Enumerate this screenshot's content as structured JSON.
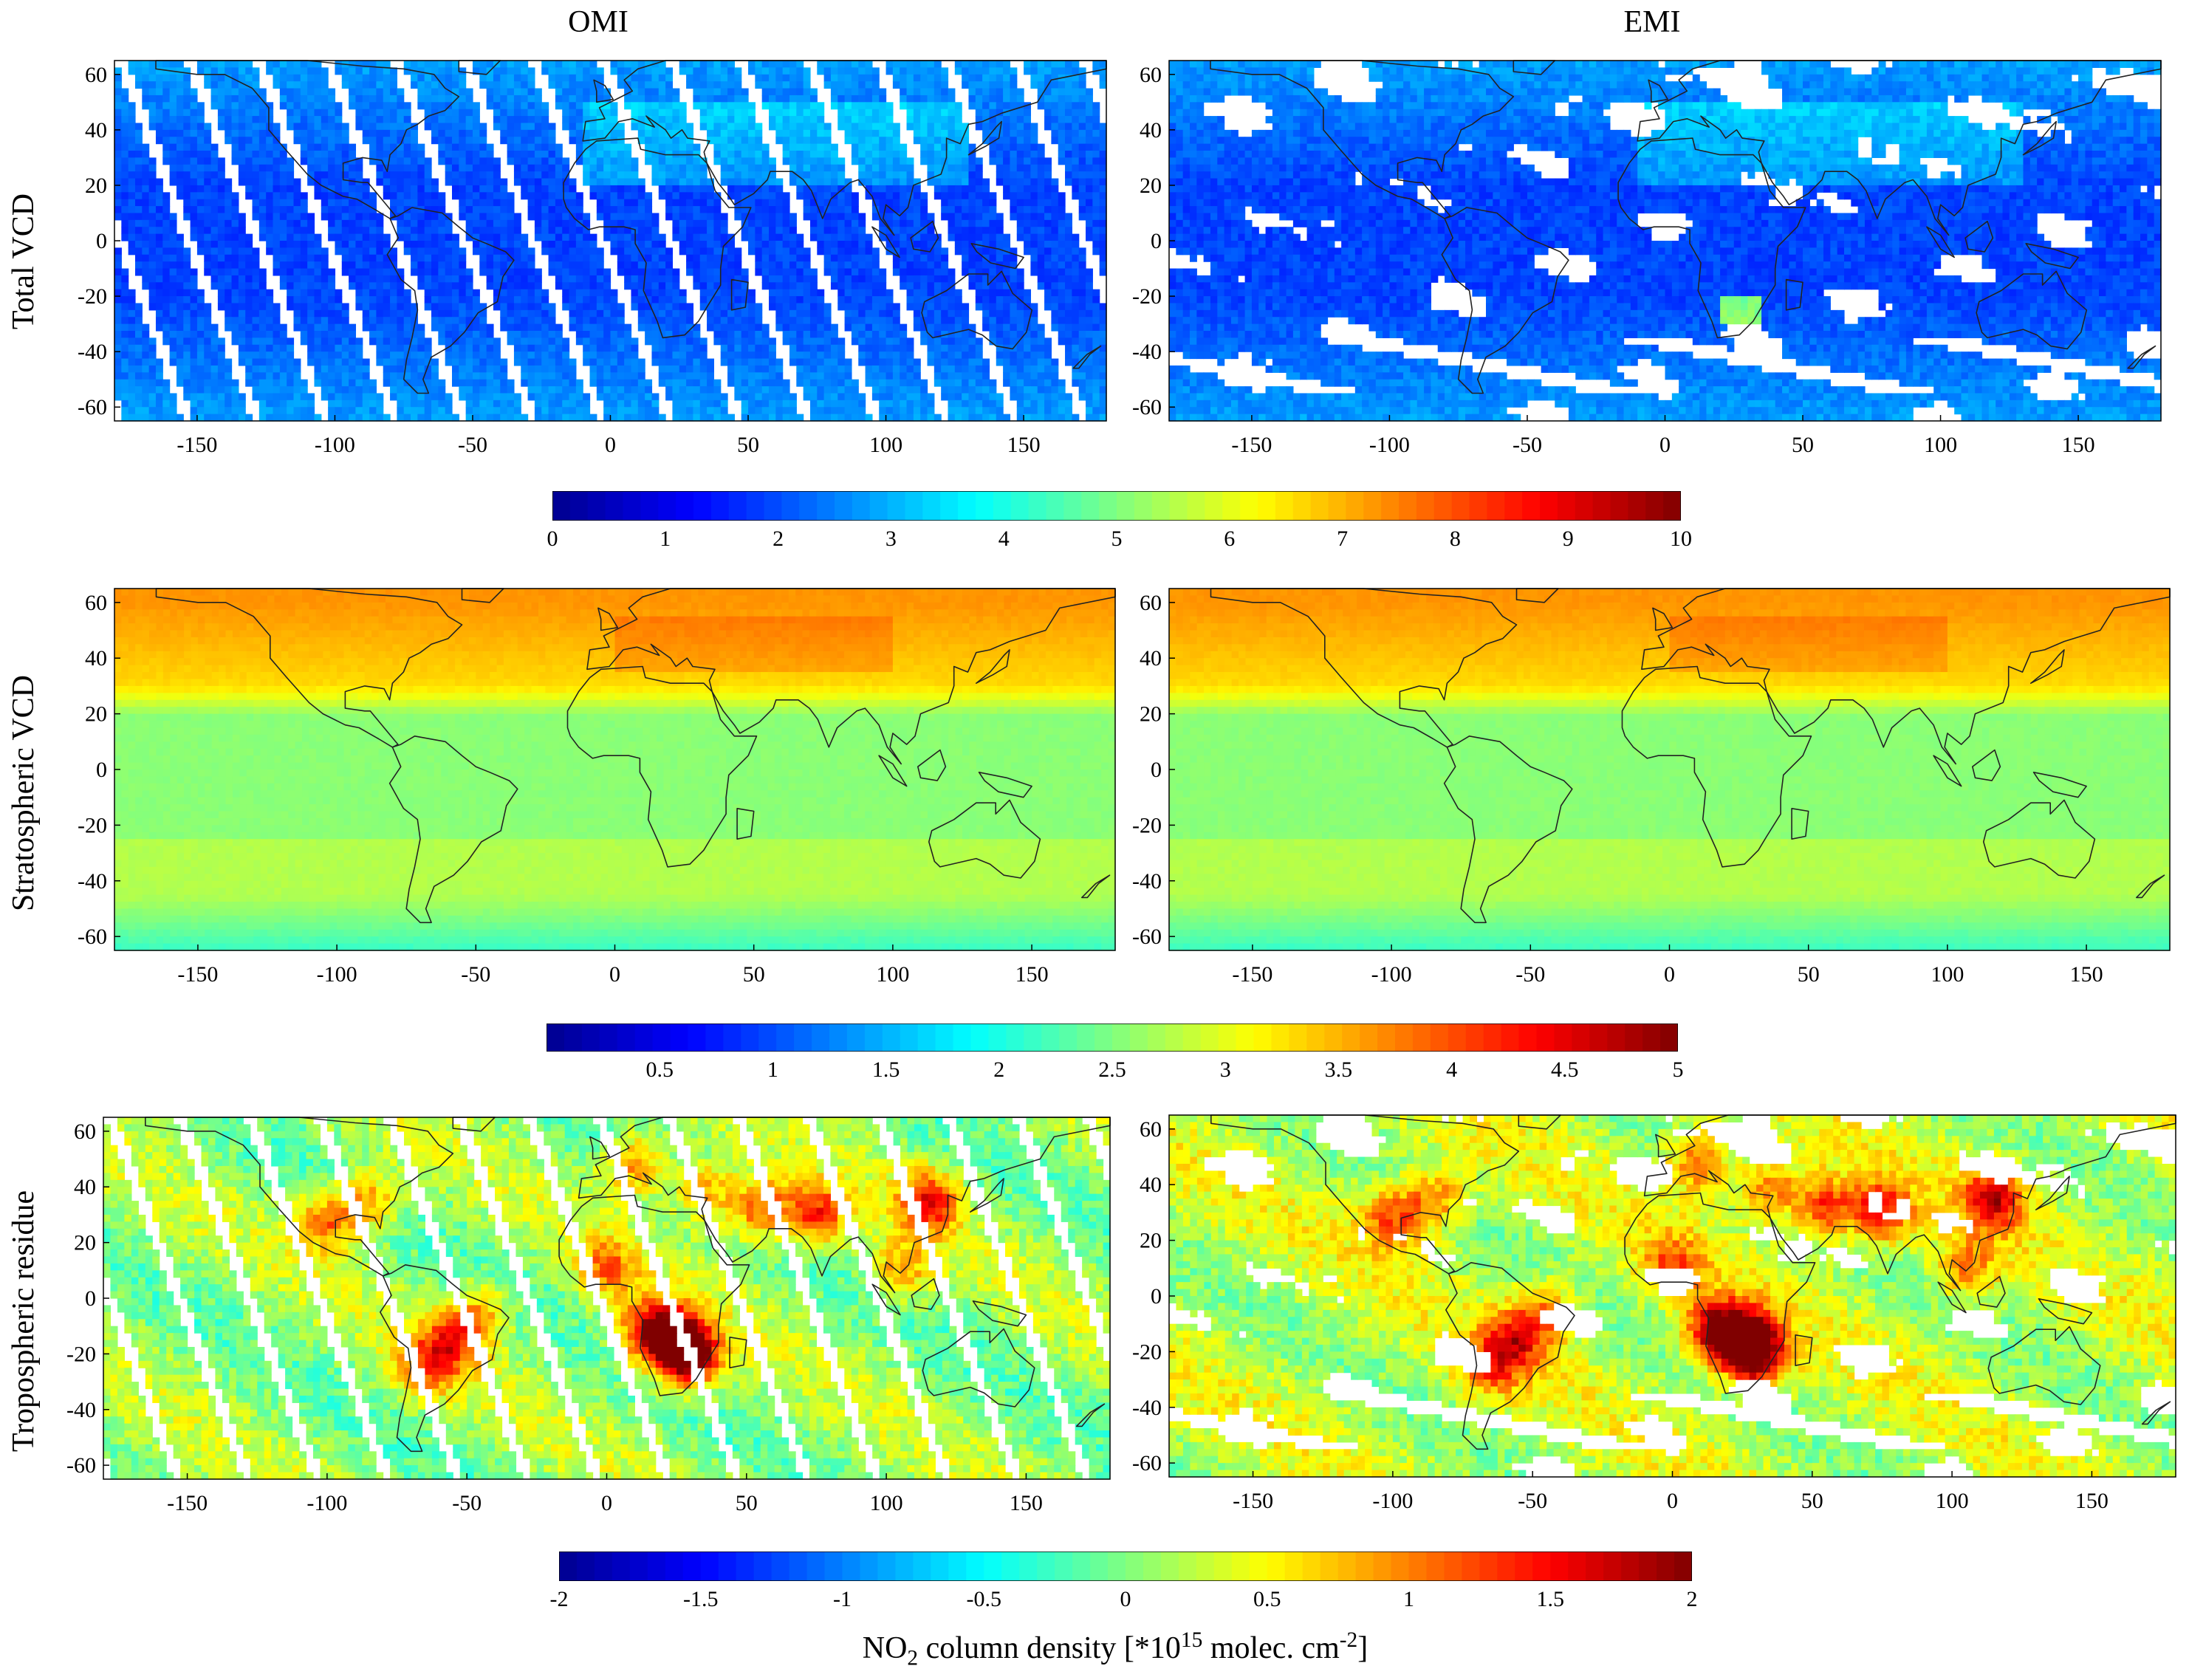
{
  "columns": [
    "OMI",
    "EMI"
  ],
  "rows": [
    "Total VCD",
    "Stratospheric VCD",
    "Tropospheric residue"
  ],
  "colorbars": [
    {
      "ticks": [
        "0",
        "1",
        "2",
        "3",
        "4",
        "5",
        "6",
        "7",
        "8",
        "9",
        "10"
      ],
      "vmin": 0,
      "vmax": 10
    },
    {
      "ticks": [
        "0.5",
        "1",
        "1.5",
        "2",
        "2.5",
        "3",
        "3.5",
        "4",
        "4.5",
        "5"
      ],
      "vmin": 0,
      "vmax": 5
    },
    {
      "ticks": [
        "-2",
        "-1.5",
        "-1",
        "-0.5",
        "0",
        "0.5",
        "1",
        "1.5",
        "2"
      ],
      "vmin": -2,
      "vmax": 2
    }
  ],
  "footer": {
    "prefix": "NO",
    "sub": "2",
    "middle": " column density [*10",
    "sup1": "15",
    "middle2": " molec. cm",
    "sup2": "-2",
    "suffix": "]"
  },
  "colors": {
    "jet": [
      "#00008f",
      "#0000ff",
      "#0080ff",
      "#00ffff",
      "#80ff80",
      "#ffff00",
      "#ff8000",
      "#ff0000",
      "#800000"
    ],
    "coast": "#222222"
  },
  "chart_data": [
    {
      "type": "heatmap",
      "title": "OMI Total VCD",
      "xlabel": "",
      "ylabel": "Total VCD",
      "x_ticks": [
        "-150",
        "-100",
        "-50",
        "0",
        "50",
        "100",
        "150"
      ],
      "y_ticks": [
        "60",
        "40",
        "20",
        "0",
        "-20",
        "-40",
        "-60"
      ],
      "xlim": [
        -180,
        180
      ],
      "ylim": [
        -65,
        65
      ],
      "value_range": [
        0,
        10
      ],
      "typical_value": 2.2,
      "pattern": "orbit-swath-gaps"
    },
    {
      "type": "heatmap",
      "title": "EMI Total VCD",
      "xlabel": "",
      "ylabel": "",
      "x_ticks": [
        "-150",
        "-100",
        "-50",
        "0",
        "50",
        "100",
        "150"
      ],
      "y_ticks": [
        "60",
        "40",
        "20",
        "0",
        "-20",
        "-40",
        "-60"
      ],
      "xlim": [
        -180,
        180
      ],
      "ylim": [
        -65,
        65
      ],
      "value_range": [
        0,
        10
      ],
      "typical_value": 2.3,
      "pattern": "cloud-gaps"
    },
    {
      "type": "heatmap",
      "title": "OMI Stratospheric VCD",
      "xlabel": "",
      "ylabel": "Stratospheric VCD",
      "x_ticks": [
        "-150",
        "-100",
        "-50",
        "0",
        "50",
        "100",
        "150"
      ],
      "y_ticks": [
        "60",
        "40",
        "20",
        "0",
        "-20",
        "-40",
        "-60"
      ],
      "xlim": [
        -180,
        180
      ],
      "ylim": [
        -65,
        65
      ],
      "value_range": [
        0,
        5
      ],
      "typical_value": 2.6,
      "pattern": "latitudinal"
    },
    {
      "type": "heatmap",
      "title": "EMI Stratospheric VCD",
      "xlabel": "",
      "ylabel": "",
      "x_ticks": [
        "-150",
        "-100",
        "-50",
        "0",
        "50",
        "100",
        "150"
      ],
      "y_ticks": [
        "60",
        "40",
        "20",
        "0",
        "-20",
        "-40",
        "-60"
      ],
      "xlim": [
        -180,
        180
      ],
      "ylim": [
        -65,
        65
      ],
      "value_range": [
        0,
        5
      ],
      "typical_value": 2.6,
      "pattern": "latitudinal"
    },
    {
      "type": "heatmap",
      "title": "OMI Tropospheric residue",
      "xlabel": "",
      "ylabel": "Tropospheric residue",
      "x_ticks": [
        "-150",
        "-100",
        "-50",
        "0",
        "50",
        "100",
        "150"
      ],
      "y_ticks": [
        "60",
        "40",
        "20",
        "0",
        "-20",
        "-40",
        "-60"
      ],
      "xlim": [
        -180,
        180
      ],
      "ylim": [
        -65,
        65
      ],
      "value_range": [
        -2,
        2
      ],
      "typical_value": 0.3,
      "pattern": "orbit-swath-gaps"
    },
    {
      "type": "heatmap",
      "title": "EMI Tropospheric residue",
      "xlabel": "",
      "ylabel": "",
      "x_ticks": [
        "-150",
        "-100",
        "-50",
        "0",
        "50",
        "100",
        "150"
      ],
      "y_ticks": [
        "60",
        "40",
        "20",
        "0",
        "-20",
        "-40",
        "-60"
      ],
      "xlim": [
        -180,
        180
      ],
      "ylim": [
        -65,
        65
      ],
      "value_range": [
        -2,
        2
      ],
      "typical_value": 0.35,
      "pattern": "cloud-gaps"
    }
  ]
}
